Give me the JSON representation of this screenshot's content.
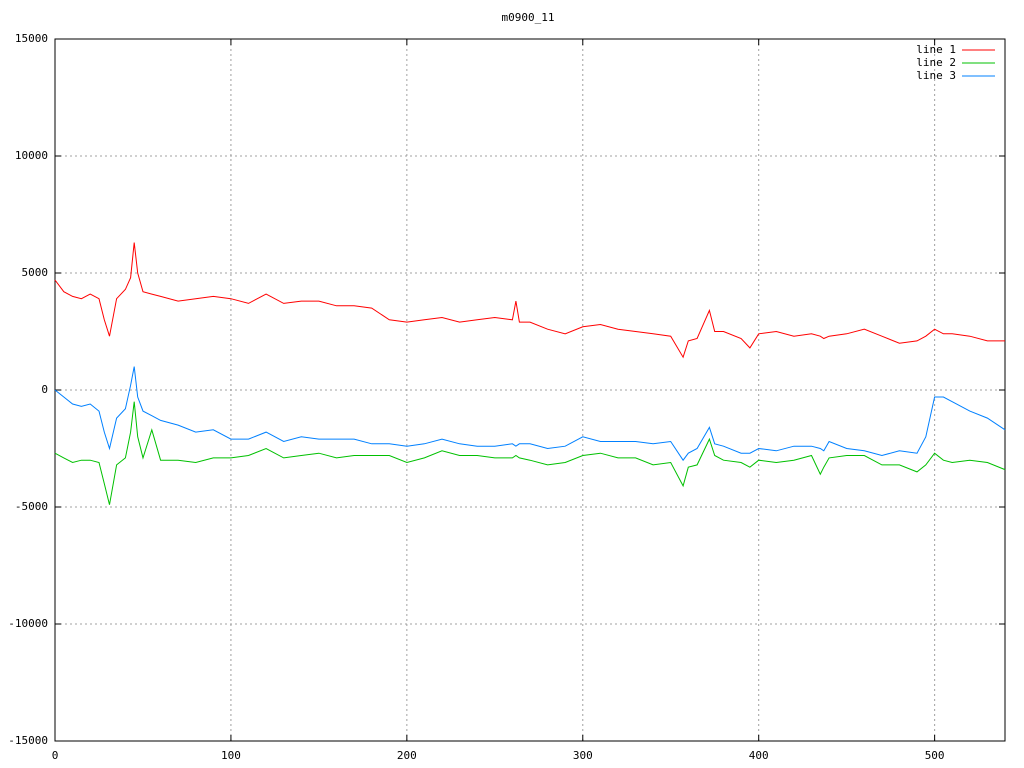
{
  "chart_data": {
    "type": "line",
    "title": "m0900_11",
    "x": [
      0,
      5,
      10,
      15,
      20,
      25,
      28,
      31,
      35,
      40,
      43,
      45,
      47,
      50,
      55,
      60,
      70,
      80,
      90,
      100,
      110,
      120,
      130,
      140,
      150,
      160,
      170,
      180,
      190,
      200,
      210,
      220,
      230,
      240,
      250,
      260,
      262,
      264,
      270,
      280,
      290,
      300,
      310,
      320,
      330,
      340,
      350,
      357,
      360,
      365,
      372,
      375,
      380,
      390,
      395,
      400,
      410,
      420,
      430,
      435,
      437,
      440,
      450,
      460,
      470,
      480,
      490,
      495,
      500,
      505,
      510,
      520,
      530,
      540
    ],
    "series": [
      {
        "name": "line 1",
        "color": "#ff0000",
        "values": [
          4700,
          4200,
          4000,
          3900,
          4100,
          3900,
          3000,
          2300,
          3900,
          4300,
          4800,
          6300,
          5000,
          4200,
          4100,
          4000,
          3800,
          3900,
          4000,
          3900,
          3700,
          4100,
          3700,
          3800,
          3800,
          3600,
          3600,
          3500,
          3000,
          2900,
          3000,
          3100,
          2900,
          3000,
          3100,
          3000,
          3800,
          2900,
          2900,
          2600,
          2400,
          2700,
          2800,
          2600,
          2500,
          2400,
          2300,
          1400,
          2100,
          2200,
          3400,
          2500,
          2500,
          2200,
          1800,
          2400,
          2500,
          2300,
          2400,
          2300,
          2200,
          2300,
          2400,
          2600,
          2300,
          2000,
          2100,
          2300,
          2600,
          2400,
          2400,
          2300,
          2100,
          2100
        ]
      },
      {
        "name": "line 2",
        "color": "#00c000",
        "values": [
          -2700,
          -2900,
          -3100,
          -3000,
          -3000,
          -3100,
          -4000,
          -4900,
          -3200,
          -2900,
          -1800,
          -500,
          -2000,
          -2900,
          -1700,
          -3000,
          -3000,
          -3100,
          -2900,
          -2900,
          -2800,
          -2500,
          -2900,
          -2800,
          -2700,
          -2900,
          -2800,
          -2800,
          -2800,
          -3100,
          -2900,
          -2600,
          -2800,
          -2800,
          -2900,
          -2900,
          -2800,
          -2900,
          -3000,
          -3200,
          -3100,
          -2800,
          -2700,
          -2900,
          -2900,
          -3200,
          -3100,
          -4100,
          -3300,
          -3200,
          -2100,
          -2800,
          -3000,
          -3100,
          -3300,
          -3000,
          -3100,
          -3000,
          -2800,
          -3600,
          -3300,
          -2900,
          -2800,
          -2800,
          -3200,
          -3200,
          -3500,
          -3200,
          -2700,
          -3000,
          -3100,
          -3000,
          -3100,
          -3400
        ]
      },
      {
        "name": "line 3",
        "color": "#0080ff",
        "values": [
          0,
          -300,
          -600,
          -700,
          -600,
          -900,
          -1800,
          -2500,
          -1200,
          -800,
          200,
          1000,
          -300,
          -900,
          -1100,
          -1300,
          -1500,
          -1800,
          -1700,
          -2100,
          -2100,
          -1800,
          -2200,
          -2000,
          -2100,
          -2100,
          -2100,
          -2300,
          -2300,
          -2400,
          -2300,
          -2100,
          -2300,
          -2400,
          -2400,
          -2300,
          -2400,
          -2300,
          -2300,
          -2500,
          -2400,
          -2000,
          -2200,
          -2200,
          -2200,
          -2300,
          -2200,
          -3000,
          -2700,
          -2500,
          -1600,
          -2300,
          -2400,
          -2700,
          -2700,
          -2500,
          -2600,
          -2400,
          -2400,
          -2500,
          -2600,
          -2200,
          -2500,
          -2600,
          -2800,
          -2600,
          -2700,
          -2000,
          -300,
          -300,
          -500,
          -900,
          -1200,
          -1700
        ]
      }
    ],
    "xlim": [
      0,
      540
    ],
    "xticks": [
      0,
      100,
      200,
      300,
      400,
      500
    ],
    "ylim": [
      -15000,
      15000
    ],
    "yticks": [
      -15000,
      -10000,
      -5000,
      0,
      5000,
      10000,
      15000
    ],
    "grid": true,
    "legend": "top-right"
  }
}
